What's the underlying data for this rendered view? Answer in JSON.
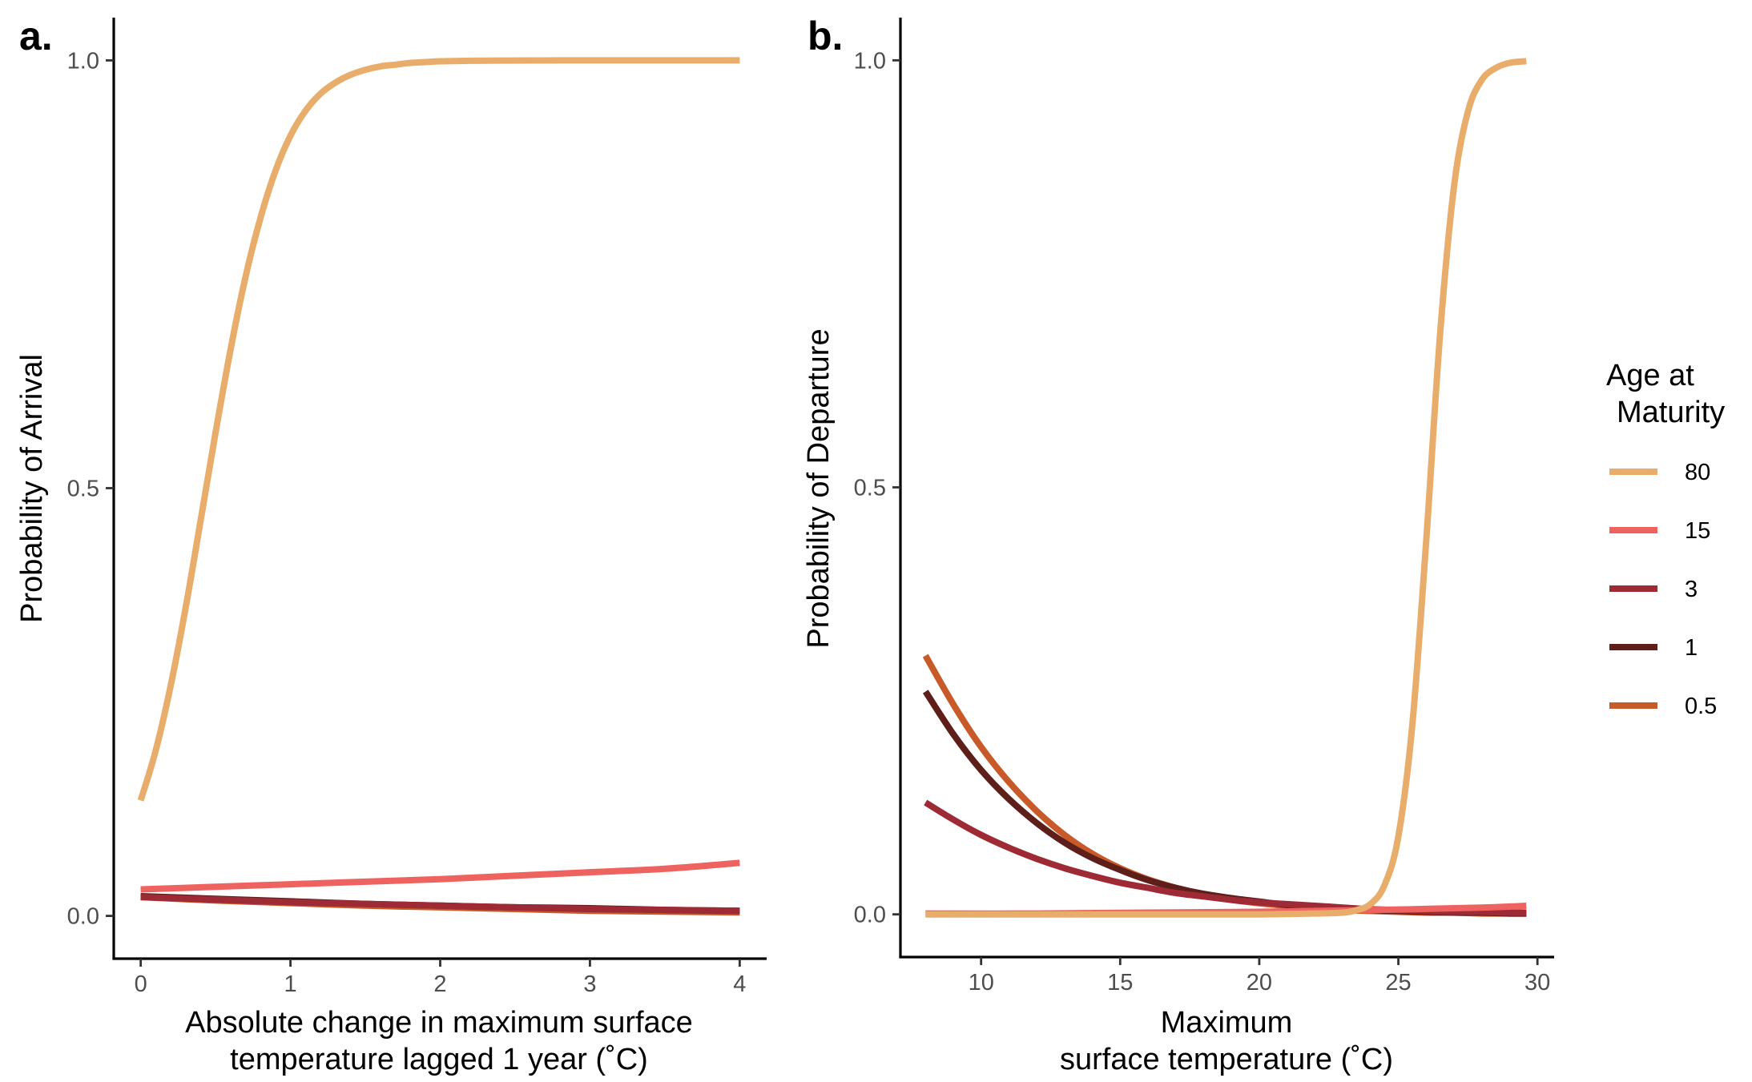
{
  "legend": {
    "title_line1": "Age at",
    "title_line2": "Maturity",
    "items": [
      {
        "label": "80",
        "color": "#E8AD6A"
      },
      {
        "label": "15",
        "color": "#EE625F"
      },
      {
        "label": "3",
        "color": "#9E2A36"
      },
      {
        "label": "1",
        "color": "#5E1E1A"
      },
      {
        "label": "0.5",
        "color": "#C85A2A"
      }
    ]
  },
  "chart_data": [
    {
      "type": "line",
      "panel": "a.",
      "xlabel_line1": "Absolute change in maximum surface",
      "xlabel_line2": "temperature lagged 1 year (˚C)",
      "ylabel": "Probability of Arrival",
      "xlim": [
        -0.18,
        4.18
      ],
      "ylim": [
        -0.05,
        1.05
      ],
      "xticks": [
        0,
        1,
        2,
        3,
        4
      ],
      "xtick_labels": [
        "0",
        "1",
        "2",
        "3",
        "4"
      ],
      "yticks": [
        0.0,
        0.5,
        1.0
      ],
      "ytick_labels": [
        "0.0",
        "0.5",
        "1.0"
      ],
      "grid": false,
      "series": [
        {
          "name": "80",
          "color": "#E8AD6A",
          "x": [
            0,
            0.1,
            0.2,
            0.3,
            0.4,
            0.5,
            0.6,
            0.7,
            0.8,
            0.9,
            1.0,
            1.1,
            1.2,
            1.3,
            1.4,
            1.5,
            1.6,
            1.7,
            1.8,
            1.9,
            2.0,
            2.2,
            2.4,
            2.6,
            2.8,
            3.0,
            3.5,
            4.0
          ],
          "y": [
            0.135,
            0.193,
            0.269,
            0.36,
            0.462,
            0.565,
            0.662,
            0.747,
            0.816,
            0.871,
            0.912,
            0.941,
            0.961,
            0.974,
            0.983,
            0.989,
            0.993,
            0.995,
            0.997,
            0.998,
            0.999,
            0.9995,
            0.9998,
            0.9999,
            1.0,
            1.0,
            1.0,
            1.0
          ]
        },
        {
          "name": "15",
          "color": "#EE625F",
          "x": [
            0,
            0.5,
            1.0,
            1.5,
            2.0,
            2.5,
            3.0,
            3.5,
            4.0
          ],
          "y": [
            0.031,
            0.034,
            0.037,
            0.04,
            0.043,
            0.047,
            0.051,
            0.055,
            0.062
          ]
        },
        {
          "name": "3",
          "color": "#9E2A36",
          "x": [
            0,
            0.5,
            1.0,
            1.5,
            2.0,
            2.5,
            3.0,
            3.5,
            4.0
          ],
          "y": [
            0.022,
            0.019,
            0.016,
            0.014,
            0.012,
            0.01,
            0.008,
            0.007,
            0.006
          ]
        },
        {
          "name": "1",
          "color": "#5E1E1A",
          "x": [
            0,
            0.5,
            1.0,
            1.5,
            2.0,
            2.5,
            3.0,
            3.5,
            4.0
          ],
          "y": [
            0.023,
            0.02,
            0.017,
            0.014,
            0.012,
            0.01,
            0.009,
            0.007,
            0.006
          ]
        },
        {
          "name": "0.5",
          "color": "#C85A2A",
          "x": [
            0,
            0.5,
            1.0,
            1.5,
            2.0,
            2.5,
            3.0,
            3.5,
            4.0
          ],
          "y": [
            0.022,
            0.018,
            0.015,
            0.012,
            0.01,
            0.008,
            0.006,
            0.005,
            0.004
          ]
        }
      ]
    },
    {
      "type": "line",
      "panel": "b.",
      "xlabel_line1": "Maximum",
      "xlabel_line2": "surface temperature (˚C)",
      "ylabel": "Probability of Departure",
      "xlim": [
        7.1,
        30.6
      ],
      "ylim": [
        -0.05,
        1.05
      ],
      "xticks": [
        10,
        15,
        20,
        25,
        30
      ],
      "xtick_labels": [
        "10",
        "15",
        "20",
        "25",
        "30"
      ],
      "yticks": [
        0.0,
        0.5,
        1.0
      ],
      "ytick_labels": [
        "0.0",
        "0.5",
        "1.0"
      ],
      "grid": false,
      "series": [
        {
          "name": "80",
          "color": "#E8AD6A",
          "x": [
            8,
            10,
            12,
            14,
            16,
            18,
            20,
            22,
            23,
            23.5,
            24,
            24.5,
            25,
            25.5,
            26,
            26.5,
            27,
            27.5,
            28,
            28.5,
            29,
            29.6
          ],
          "y": [
            0.0,
            0.0,
            0.0,
            0.0,
            0.0,
            0.0,
            0.0,
            0.001,
            0.002,
            0.005,
            0.012,
            0.034,
            0.091,
            0.221,
            0.437,
            0.679,
            0.852,
            0.94,
            0.977,
            0.991,
            0.997,
            0.999
          ]
        },
        {
          "name": "15",
          "color": "#EE625F",
          "x": [
            8,
            12,
            16,
            20,
            24,
            28,
            29.6
          ],
          "y": [
            0.001,
            0.001,
            0.002,
            0.003,
            0.005,
            0.008,
            0.01
          ]
        },
        {
          "name": "3",
          "color": "#9E2A36",
          "x": [
            8,
            9,
            10,
            11,
            12,
            13,
            14,
            15,
            16,
            17,
            18,
            19,
            20,
            21,
            22,
            23,
            24,
            25,
            26,
            27,
            28,
            29,
            29.6
          ],
          "y": [
            0.131,
            0.111,
            0.093,
            0.078,
            0.065,
            0.054,
            0.045,
            0.037,
            0.031,
            0.025,
            0.021,
            0.017,
            0.014,
            0.012,
            0.01,
            0.008,
            0.006,
            0.005,
            0.004,
            0.003,
            0.003,
            0.002,
            0.002
          ]
        },
        {
          "name": "1",
          "color": "#5E1E1A",
          "x": [
            8,
            9,
            10,
            11,
            12,
            13,
            14,
            15,
            16,
            17,
            18,
            19,
            20,
            21,
            22,
            23,
            24,
            25,
            26,
            27,
            28,
            29,
            29.6
          ],
          "y": [
            0.261,
            0.211,
            0.169,
            0.135,
            0.107,
            0.084,
            0.066,
            0.052,
            0.04,
            0.031,
            0.024,
            0.019,
            0.015,
            0.011,
            0.009,
            0.007,
            0.005,
            0.004,
            0.003,
            0.002,
            0.002,
            0.001,
            0.001
          ]
        },
        {
          "name": "0.5",
          "color": "#C85A2A",
          "x": [
            8,
            9,
            10,
            11,
            12,
            13,
            14,
            15,
            16,
            17,
            18,
            19,
            20,
            21,
            22,
            23,
            24,
            25,
            26,
            27,
            28,
            29,
            29.6
          ],
          "y": [
            0.303,
            0.246,
            0.196,
            0.155,
            0.121,
            0.093,
            0.071,
            0.054,
            0.041,
            0.031,
            0.023,
            0.017,
            0.013,
            0.01,
            0.007,
            0.005,
            0.004,
            0.003,
            0.002,
            0.002,
            0.001,
            0.001,
            0.001
          ]
        }
      ]
    }
  ]
}
